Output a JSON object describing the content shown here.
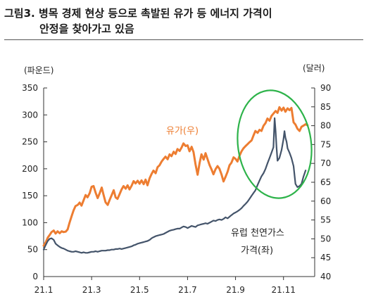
{
  "title_line1": "그림3. 병목 경제 현상 등으로 촉발된 유가 등 에너지 가격이",
  "title_line2": "안정을 찾아가고 있음",
  "chart_data": {
    "type": "line",
    "left_axis": {
      "label": "(파운드)",
      "ylim": [
        0,
        350
      ],
      "ticks": [
        0,
        50,
        100,
        150,
        200,
        250,
        300,
        350
      ]
    },
    "right_axis": {
      "label": "(달러)",
      "ylim": [
        40,
        90
      ],
      "ticks": [
        40,
        45,
        50,
        55,
        60,
        65,
        70,
        75,
        80,
        85,
        90
      ]
    },
    "x_ticks": [
      "21.1",
      "21.3",
      "21.5",
      "21.7",
      "21.9",
      "21.11"
    ],
    "x_tick_positions": [
      0,
      2,
      4,
      6,
      8,
      10
    ],
    "xlim": [
      0,
      11.3
    ],
    "series": [
      {
        "name": "유가(우)",
        "axis": "right",
        "color": "#ED7D31",
        "points": [
          [
            0.0,
            48.2
          ],
          [
            0.08,
            49.0
          ],
          [
            0.17,
            50.3
          ],
          [
            0.25,
            51.0
          ],
          [
            0.33,
            51.8
          ],
          [
            0.42,
            52.2
          ],
          [
            0.5,
            51.4
          ],
          [
            0.58,
            52.0
          ],
          [
            0.67,
            51.5
          ],
          [
            0.75,
            52.0
          ],
          [
            0.83,
            51.8
          ],
          [
            0.92,
            51.9
          ],
          [
            1.0,
            52.5
          ],
          [
            1.08,
            54.3
          ],
          [
            1.17,
            56.1
          ],
          [
            1.25,
            57.6
          ],
          [
            1.33,
            58.7
          ],
          [
            1.42,
            59.0
          ],
          [
            1.5,
            59.6
          ],
          [
            1.58,
            58.8
          ],
          [
            1.67,
            60.3
          ],
          [
            1.75,
            61.6
          ],
          [
            1.83,
            61.0
          ],
          [
            1.92,
            62.1
          ],
          [
            2.0,
            63.8
          ],
          [
            2.08,
            64.0
          ],
          [
            2.17,
            62.2
          ],
          [
            2.25,
            60.8
          ],
          [
            2.33,
            62.0
          ],
          [
            2.42,
            63.6
          ],
          [
            2.5,
            61.6
          ],
          [
            2.58,
            59.7
          ],
          [
            2.67,
            59.0
          ],
          [
            2.75,
            60.3
          ],
          [
            2.83,
            61.5
          ],
          [
            2.92,
            62.9
          ],
          [
            3.0,
            61.0
          ],
          [
            3.08,
            60.6
          ],
          [
            3.17,
            61.9
          ],
          [
            3.25,
            63.1
          ],
          [
            3.33,
            64.0
          ],
          [
            3.42,
            63.3
          ],
          [
            3.5,
            64.2
          ],
          [
            3.58,
            63.1
          ],
          [
            3.67,
            64.1
          ],
          [
            3.75,
            65.3
          ],
          [
            3.83,
            64.7
          ],
          [
            3.92,
            65.4
          ],
          [
            4.0,
            64.6
          ],
          [
            4.08,
            65.5
          ],
          [
            4.17,
            64.5
          ],
          [
            4.25,
            65.7
          ],
          [
            4.33,
            64.2
          ],
          [
            4.42,
            66.1
          ],
          [
            4.5,
            67.2
          ],
          [
            4.58,
            68.1
          ],
          [
            4.67,
            67.4
          ],
          [
            4.75,
            69.0
          ],
          [
            4.83,
            69.5
          ],
          [
            4.92,
            70.5
          ],
          [
            5.0,
            71.2
          ],
          [
            5.08,
            71.8
          ],
          [
            5.17,
            71.1
          ],
          [
            5.25,
            72.4
          ],
          [
            5.33,
            71.9
          ],
          [
            5.42,
            73.1
          ],
          [
            5.5,
            72.5
          ],
          [
            5.58,
            73.8
          ],
          [
            5.67,
            73.3
          ],
          [
            5.75,
            74.2
          ],
          [
            5.83,
            75.3
          ],
          [
            5.92,
            74.6
          ],
          [
            6.0,
            74.8
          ],
          [
            6.08,
            73.2
          ],
          [
            6.17,
            74.4
          ],
          [
            6.25,
            73.0
          ],
          [
            6.33,
            69.8
          ],
          [
            6.42,
            67.0
          ],
          [
            6.5,
            70.1
          ],
          [
            6.58,
            72.4
          ],
          [
            6.67,
            71.0
          ],
          [
            6.75,
            72.7
          ],
          [
            6.83,
            71.2
          ],
          [
            6.92,
            69.5
          ],
          [
            7.0,
            68.4
          ],
          [
            7.08,
            67.1
          ],
          [
            7.17,
            68.5
          ],
          [
            7.25,
            69.3
          ],
          [
            7.33,
            68.6
          ],
          [
            7.42,
            67.0
          ],
          [
            7.5,
            65.2
          ],
          [
            7.58,
            66.4
          ],
          [
            7.67,
            67.8
          ],
          [
            7.75,
            69.5
          ],
          [
            7.83,
            70.2
          ],
          [
            7.92,
            71.6
          ],
          [
            8.0,
            71.2
          ],
          [
            8.08,
            70.5
          ],
          [
            8.17,
            72.1
          ],
          [
            8.25,
            73.2
          ],
          [
            8.33,
            74.0
          ],
          [
            8.42,
            74.6
          ],
          [
            8.5,
            75.1
          ],
          [
            8.58,
            75.6
          ],
          [
            8.67,
            76.1
          ],
          [
            8.75,
            77.4
          ],
          [
            8.83,
            78.6
          ],
          [
            8.92,
            78.1
          ],
          [
            9.0,
            78.9
          ],
          [
            9.08,
            78.6
          ],
          [
            9.17,
            80.0
          ],
          [
            9.25,
            80.7
          ],
          [
            9.33,
            81.9
          ],
          [
            9.42,
            81.3
          ],
          [
            9.5,
            82.6
          ],
          [
            9.58,
            83.2
          ],
          [
            9.67,
            83.9
          ],
          [
            9.75,
            83.4
          ],
          [
            9.83,
            84.9
          ],
          [
            9.92,
            84.0
          ],
          [
            10.0,
            84.8
          ],
          [
            10.08,
            83.7
          ],
          [
            10.17,
            84.6
          ],
          [
            10.25,
            84.1
          ],
          [
            10.33,
            84.7
          ],
          [
            10.42,
            80.9
          ],
          [
            10.5,
            80.3
          ],
          [
            10.58,
            79.2
          ],
          [
            10.67,
            78.6
          ],
          [
            10.75,
            79.7
          ],
          [
            10.83,
            80.0
          ],
          [
            10.92,
            80.4
          ],
          [
            11.0,
            80.1
          ]
        ]
      },
      {
        "name": "유럽 천연가스 가격(좌)",
        "axis": "left",
        "color": "#44546A",
        "points": [
          [
            0.0,
            50
          ],
          [
            0.08,
            58
          ],
          [
            0.17,
            66
          ],
          [
            0.25,
            70
          ],
          [
            0.33,
            71
          ],
          [
            0.42,
            68
          ],
          [
            0.5,
            61
          ],
          [
            0.58,
            58
          ],
          [
            0.67,
            55
          ],
          [
            0.75,
            53
          ],
          [
            0.83,
            52
          ],
          [
            0.92,
            50
          ],
          [
            1.0,
            48
          ],
          [
            1.08,
            47
          ],
          [
            1.17,
            46
          ],
          [
            1.25,
            46
          ],
          [
            1.33,
            47
          ],
          [
            1.42,
            46
          ],
          [
            1.5,
            45
          ],
          [
            1.58,
            44
          ],
          [
            1.67,
            45
          ],
          [
            1.75,
            44
          ],
          [
            1.83,
            44
          ],
          [
            1.92,
            45
          ],
          [
            2.0,
            46
          ],
          [
            2.08,
            46
          ],
          [
            2.17,
            47
          ],
          [
            2.25,
            46
          ],
          [
            2.33,
            47
          ],
          [
            2.42,
            48
          ],
          [
            2.5,
            48
          ],
          [
            2.58,
            48
          ],
          [
            2.67,
            49
          ],
          [
            2.75,
            49
          ],
          [
            2.83,
            50
          ],
          [
            2.92,
            50
          ],
          [
            3.0,
            51
          ],
          [
            3.08,
            51
          ],
          [
            3.17,
            52
          ],
          [
            3.25,
            51
          ],
          [
            3.33,
            52
          ],
          [
            3.42,
            53
          ],
          [
            3.5,
            54
          ],
          [
            3.58,
            55
          ],
          [
            3.67,
            56
          ],
          [
            3.75,
            58
          ],
          [
            3.83,
            59
          ],
          [
            3.92,
            61
          ],
          [
            4.0,
            62
          ],
          [
            4.08,
            63
          ],
          [
            4.17,
            64
          ],
          [
            4.25,
            65
          ],
          [
            4.33,
            66
          ],
          [
            4.42,
            68
          ],
          [
            4.5,
            71
          ],
          [
            4.58,
            73
          ],
          [
            4.67,
            75
          ],
          [
            4.75,
            76
          ],
          [
            4.83,
            77
          ],
          [
            4.92,
            78
          ],
          [
            5.0,
            79
          ],
          [
            5.08,
            81
          ],
          [
            5.17,
            83
          ],
          [
            5.25,
            85
          ],
          [
            5.33,
            86
          ],
          [
            5.42,
            87
          ],
          [
            5.5,
            88
          ],
          [
            5.58,
            89
          ],
          [
            5.67,
            89
          ],
          [
            5.75,
            91
          ],
          [
            5.83,
            93
          ],
          [
            5.92,
            92
          ],
          [
            6.0,
            90
          ],
          [
            6.08,
            92
          ],
          [
            6.17,
            94
          ],
          [
            6.25,
            93
          ],
          [
            6.33,
            92
          ],
          [
            6.42,
            95
          ],
          [
            6.5,
            96
          ],
          [
            6.58,
            97
          ],
          [
            6.67,
            98
          ],
          [
            6.75,
            99
          ],
          [
            6.83,
            98
          ],
          [
            6.92,
            100
          ],
          [
            7.0,
            102
          ],
          [
            7.08,
            104
          ],
          [
            7.17,
            103
          ],
          [
            7.25,
            105
          ],
          [
            7.33,
            106
          ],
          [
            7.42,
            105
          ],
          [
            7.5,
            107
          ],
          [
            7.58,
            110
          ],
          [
            7.67,
            108
          ],
          [
            7.75,
            111
          ],
          [
            7.83,
            114
          ],
          [
            7.92,
            117
          ],
          [
            8.0,
            119
          ],
          [
            8.08,
            121
          ],
          [
            8.17,
            124
          ],
          [
            8.25,
            127
          ],
          [
            8.33,
            131
          ],
          [
            8.42,
            135
          ],
          [
            8.5,
            139
          ],
          [
            8.58,
            144
          ],
          [
            8.67,
            150
          ],
          [
            8.75,
            155
          ],
          [
            8.83,
            160
          ],
          [
            8.92,
            170
          ],
          [
            9.0,
            178
          ],
          [
            9.08,
            186
          ],
          [
            9.17,
            192
          ],
          [
            9.25,
            200
          ],
          [
            9.33,
            210
          ],
          [
            9.42,
            220
          ],
          [
            9.5,
            230
          ],
          [
            9.58,
            240
          ],
          [
            9.63,
            294
          ],
          [
            9.67,
            270
          ],
          [
            9.71,
            240
          ],
          [
            9.75,
            215
          ],
          [
            9.83,
            220
          ],
          [
            9.92,
            235
          ],
          [
            10.0,
            255
          ],
          [
            10.04,
            270
          ],
          [
            10.08,
            258
          ],
          [
            10.13,
            250
          ],
          [
            10.17,
            238
          ],
          [
            10.25,
            230
          ],
          [
            10.33,
            220
          ],
          [
            10.42,
            205
          ],
          [
            10.5,
            172
          ],
          [
            10.58,
            166
          ],
          [
            10.67,
            168
          ],
          [
            10.75,
            172
          ],
          [
            10.83,
            185
          ],
          [
            10.92,
            197
          ]
        ]
      }
    ],
    "annotations": [
      {
        "text": "유가(우)",
        "color": "#ED7D31"
      },
      {
        "text": "유럽 천연가스",
        "color": "#222222"
      },
      {
        "text": "가격(좌)",
        "color": "#222222"
      }
    ],
    "highlight": {
      "shape": "ellipse",
      "color": "#2DB34A"
    },
    "grid": false
  }
}
